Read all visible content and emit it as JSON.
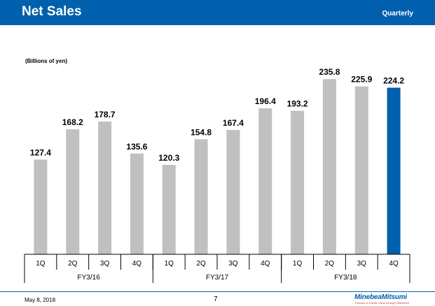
{
  "header": {
    "title": "Net Sales",
    "period": "Quarterly"
  },
  "unit_label": "(Billions of yen)",
  "footer": {
    "date": "May 8, 2018",
    "page": "7"
  },
  "logo": {
    "name": "MinebeaMitsumi",
    "tagline": "Passion to Create Value through Difference"
  },
  "colors": {
    "header": "#0060ae",
    "bar_default": "#c0c0c0",
    "bar_highlight": "#0060ae"
  },
  "chart_data": {
    "type": "bar",
    "title": "Net Sales",
    "ylabel": "Billions of yen",
    "ylim": [
      0,
      240
    ],
    "grid": false,
    "legend": "none",
    "categories": [
      "1Q",
      "2Q",
      "3Q",
      "4Q",
      "1Q",
      "2Q",
      "3Q",
      "4Q",
      "1Q",
      "2Q",
      "3Q",
      "4Q"
    ],
    "groups": [
      {
        "label": "FY3/16",
        "count": 4
      },
      {
        "label": "FY3/17",
        "count": 4
      },
      {
        "label": "FY3/18",
        "count": 4
      }
    ],
    "values": [
      127.4,
      168.2,
      178.7,
      135.6,
      120.3,
      154.8,
      167.4,
      196.4,
      193.2,
      235.8,
      225.9,
      224.2
    ],
    "highlight_index": 11
  }
}
